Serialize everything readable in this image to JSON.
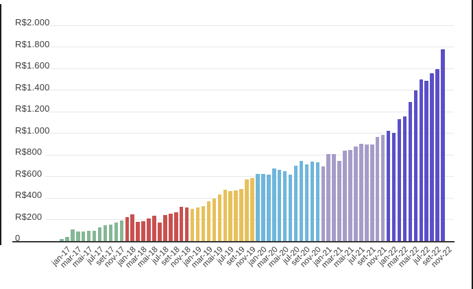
{
  "chart_data": {
    "type": "bar",
    "title": "",
    "legend": "none",
    "grid": true,
    "currency_prefix": "R$",
    "y_axis": {
      "min": 0,
      "max": 2000,
      "step": 200,
      "ticks": [
        {
          "label": "R$2.000",
          "value": 2000
        },
        {
          "label": "R$1.800",
          "value": 1800
        },
        {
          "label": "R$1.600",
          "value": 1600
        },
        {
          "label": "R$1.400",
          "value": 1400
        },
        {
          "label": "R$1.200",
          "value": 1200
        },
        {
          "label": "R$1.000",
          "value": 1000
        },
        {
          "label": "R$800",
          "value": 800
        },
        {
          "label": "R$600",
          "value": 600
        },
        {
          "label": "R$400",
          "value": 400
        },
        {
          "label": "R$200",
          "value": 200
        },
        {
          "label": "0",
          "value": 0
        }
      ]
    },
    "x_axis": {
      "tick_labels": [
        "jan-17",
        "mar-17",
        "mai-17",
        "jul-17",
        "set-17",
        "nov-17",
        "jan-18",
        "mar-18",
        "mai-18",
        "jul-18",
        "set-18",
        "nov-18",
        "jan-19",
        "mar-19",
        "mai-19",
        "jul-19",
        "set-19",
        "nov-19",
        "jan-20",
        "mar-20",
        "mai-20",
        "jul-20",
        "set-20",
        "nov-20",
        "jan-21",
        "mar-21",
        "mai-21",
        "jul-21",
        "set-21",
        "nov-21",
        "jan-22",
        "mar-22",
        "mai-22",
        "jul-22",
        "set-22",
        "nov-22"
      ]
    },
    "series": [
      {
        "name": "2017",
        "color": "#85b794",
        "months": [
          "jan-17",
          "fev-17",
          "mar-17",
          "abr-17",
          "mai-17",
          "jun-17",
          "jul-17",
          "ago-17",
          "set-17",
          "out-17",
          "nov-17",
          "dez-17"
        ],
        "values": [
          20,
          36,
          105,
          92,
          92,
          98,
          95,
          128,
          145,
          155,
          170,
          190
        ]
      },
      {
        "name": "2018",
        "color": "#c8504f",
        "months": [
          "jan-18",
          "fev-18",
          "mar-18",
          "abr-18",
          "mai-18",
          "jun-18",
          "jul-18",
          "ago-18",
          "set-18",
          "out-18",
          "nov-18",
          "dez-18"
        ],
        "values": [
          225,
          245,
          180,
          182,
          212,
          238,
          170,
          240,
          252,
          266,
          315,
          313
        ]
      },
      {
        "name": "2019",
        "color": "#e8c05a",
        "months": [
          "jan-19",
          "fev-19",
          "mar-19",
          "abr-19",
          "mai-19",
          "jun-19",
          "jul-19",
          "ago-19",
          "set-19",
          "out-19",
          "nov-19",
          "dez-19"
        ],
        "values": [
          300,
          312,
          322,
          366,
          392,
          430,
          476,
          466,
          467,
          480,
          570,
          582
        ]
      },
      {
        "name": "2020",
        "color": "#6fb6dc",
        "months": [
          "jan-20",
          "fev-20",
          "mar-20",
          "abr-20",
          "mai-20",
          "jun-20",
          "jul-20",
          "ago-20",
          "set-20",
          "out-20",
          "nov-20",
          "dez-20"
        ],
        "values": [
          624,
          620,
          618,
          672,
          662,
          650,
          614,
          698,
          740,
          713,
          735,
          730
        ]
      },
      {
        "name": "2021",
        "color": "#a69cc8",
        "months": [
          "jan-21",
          "fev-21",
          "mar-21",
          "abr-21",
          "mai-21",
          "jun-21",
          "jul-21",
          "ago-21",
          "set-21",
          "out-21",
          "nov-21",
          "dez-21"
        ],
        "values": [
          694,
          808,
          808,
          745,
          836,
          847,
          874,
          900,
          894,
          894,
          963,
          984
        ]
      },
      {
        "name": "2022",
        "color": "#5a4fc8",
        "months": [
          "jan-22",
          "fev-22",
          "mar-22",
          "abr-22",
          "mai-22",
          "jun-22",
          "jul-22",
          "ago-22",
          "set-22",
          "out-22",
          "nov-22"
        ],
        "values": [
          1020,
          1005,
          1128,
          1154,
          1290,
          1396,
          1500,
          1486,
          1556,
          1596,
          1778
        ]
      }
    ]
  },
  "frame": {
    "left_border_color": "#1b1b1b",
    "right_border_color": "#1b1b1b",
    "axis_color": "#333333",
    "gridline_color": "#e7e7e7",
    "background": "#ffffff"
  }
}
